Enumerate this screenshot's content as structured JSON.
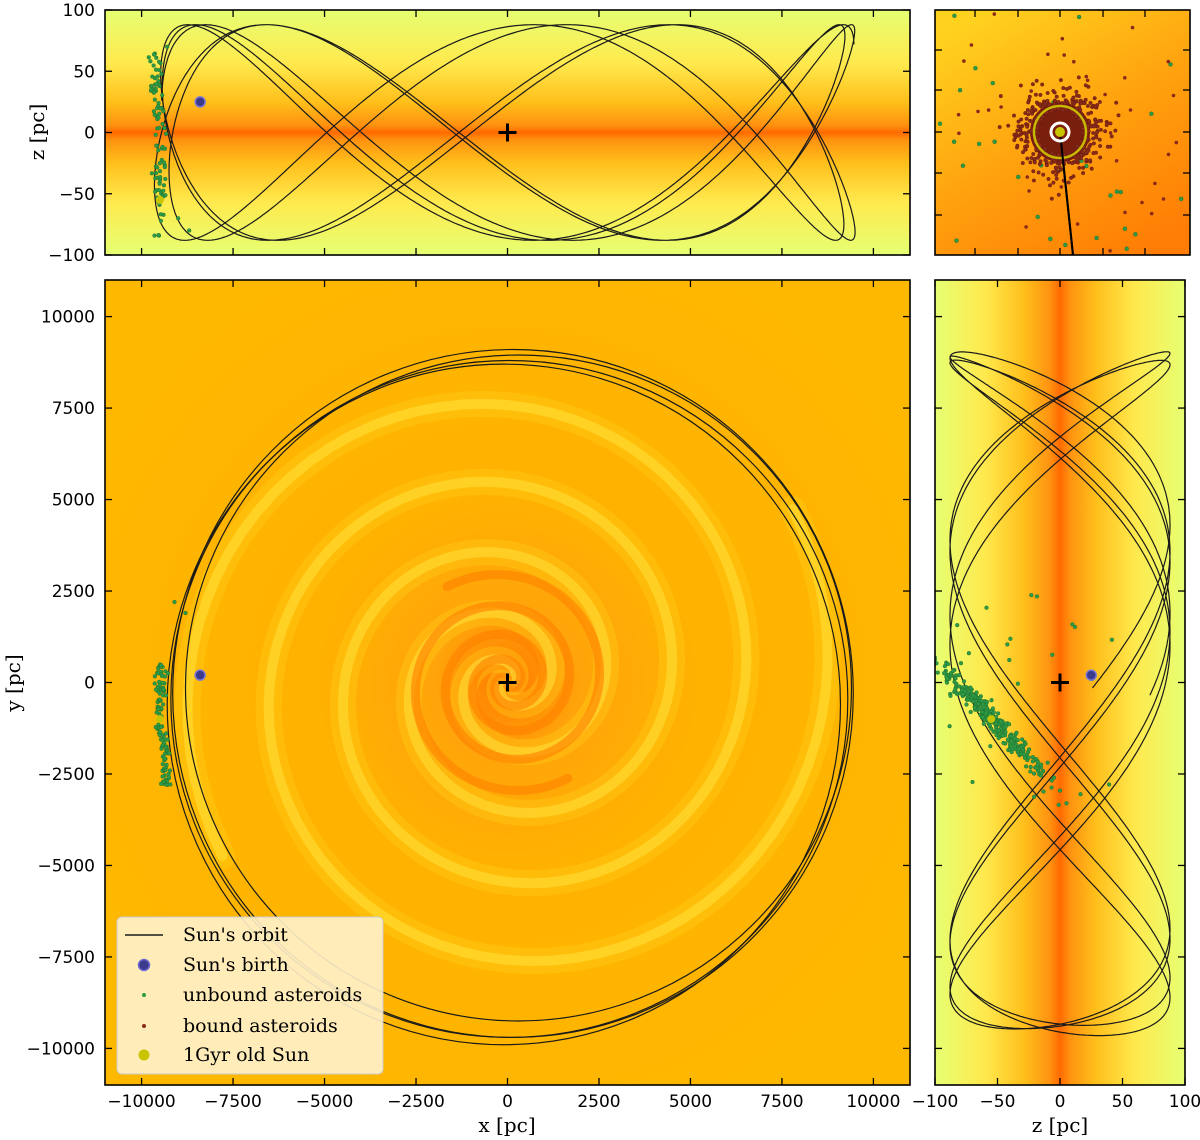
{
  "chart_data": [
    {
      "panel": "xz-edge-on",
      "type": "scatter",
      "xlabel": "",
      "ylabel": "z [pc]",
      "xlim": [
        -11000,
        11000
      ],
      "ylim": [
        -100,
        100
      ],
      "yticks": [
        100,
        50,
        0,
        -50,
        -100
      ],
      "ytick_labels": [
        "100",
        "50",
        "0",
        "−50",
        "−100"
      ],
      "background": "density-colormap-yellow-to-orange, peak at z=0",
      "markers": {
        "galactic_center": {
          "x": 0,
          "z": 0
        },
        "suns_birth": {
          "x": -8400,
          "z": 25
        },
        "one_gyr_sun": {
          "x": -9500,
          "z": -55
        }
      }
    },
    {
      "panel": "zoom-inset",
      "type": "scatter",
      "xlabel": "",
      "ylabel": "",
      "description_markers": {
        "one_gyr_sun_center": [
          0,
          0
        ],
        "bound_asteroid_cloud": "dark red points ringed around the Sun",
        "unbound_asteroids": "scattered green points"
      }
    },
    {
      "panel": "xy-face-on",
      "type": "scatter",
      "xlabel": "x [pc]",
      "ylabel": "y [pc]",
      "xlim": [
        -11000,
        11000
      ],
      "ylim": [
        -11000,
        11000
      ],
      "xticks": [
        -10000,
        -7500,
        -5000,
        -2500,
        0,
        2500,
        5000,
        7500,
        10000
      ],
      "xtick_labels": [
        "−10000",
        "−7500",
        "−5000",
        "−2500",
        "0",
        "2500",
        "5000",
        "7500",
        "10000"
      ],
      "yticks": [
        10000,
        7500,
        5000,
        2500,
        0,
        -2500,
        -5000,
        -7500,
        -10000
      ],
      "ytick_labels": [
        "10000",
        "7500",
        "5000",
        "2500",
        "0",
        "−2500",
        "−5000",
        "−7500",
        "−10000"
      ],
      "orbit_loops": [
        {
          "cx": 300,
          "cy": -150,
          "rx": 9100,
          "ry": 9100
        },
        {
          "cx": 150,
          "cy": -300,
          "rx": 9300,
          "ry": 9400
        },
        {
          "cx": 50,
          "cy": -450,
          "rx": 9250,
          "ry": 9250
        },
        {
          "cx": -100,
          "cy": -600,
          "rx": 9200,
          "ry": 9300
        }
      ],
      "markers": {
        "galactic_center": {
          "x": 0,
          "y": 0
        },
        "suns_birth": {
          "x": -8400,
          "y": 200
        },
        "one_gyr_sun": {
          "x": -9500,
          "y": -1000
        }
      },
      "spiral_arms": 2
    },
    {
      "panel": "zy-side",
      "type": "scatter",
      "xlabel": "z [pc]",
      "ylabel": "",
      "xlim": [
        -100,
        100
      ],
      "ylim": [
        -11000,
        11000
      ],
      "xticks": [
        -100,
        -50,
        0,
        50,
        100
      ],
      "xtick_labels": [
        "−100",
        "−50",
        "0",
        "50",
        "100"
      ],
      "markers": {
        "galactic_center": {
          "z": 0,
          "y": 0
        },
        "suns_birth": {
          "z": 25,
          "y": 200
        },
        "one_gyr_sun": {
          "z": -55,
          "y": -1000
        }
      }
    }
  ],
  "legend": {
    "placement": "lower-left",
    "entries": [
      {
        "label": "Sun's orbit",
        "marker": "line",
        "color": "#1a1a1a"
      },
      {
        "label": "Sun's birth",
        "marker": "circle-large",
        "color": "#3d3a8c"
      },
      {
        "label": "unbound asteroids",
        "marker": "dot-small",
        "color": "#2e9a44"
      },
      {
        "label": "bound asteroids",
        "marker": "dot-small",
        "color": "#8a2a1a"
      },
      {
        "label": "1Gyr old Sun",
        "marker": "circle",
        "color": "#c8c400"
      }
    ]
  },
  "colors": {
    "bg_light": "#e6ff73",
    "bg_mid": "#ffd700",
    "bg_core": "#ff6a00",
    "face_bg": "#ffb700",
    "orbit": "#1a1a1a",
    "birth": "#3d3a8c",
    "unbound": "#2e9a44",
    "bound": "#8a2a1a",
    "old_sun": "#c8c400"
  }
}
